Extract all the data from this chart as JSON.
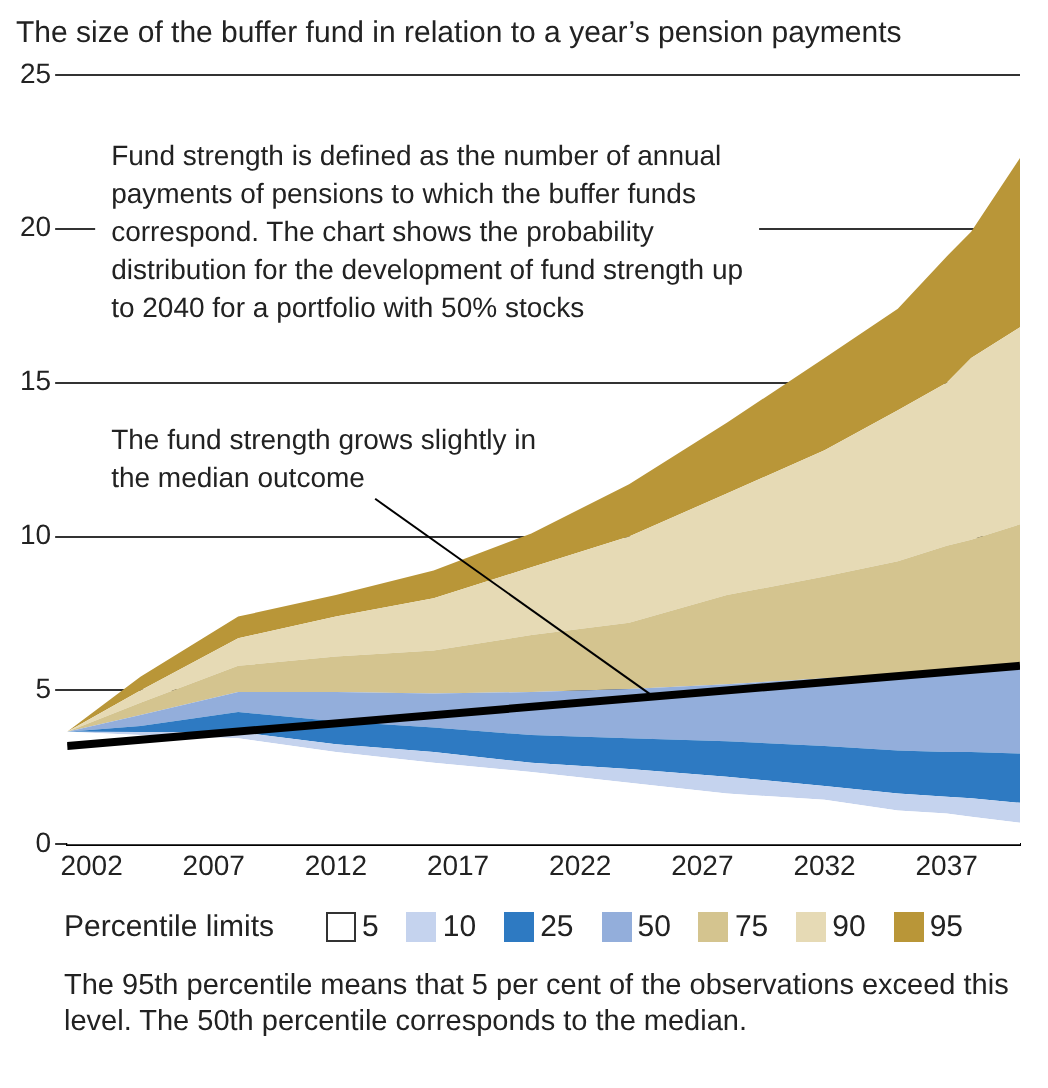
{
  "chart_data": {
    "type": "area",
    "title": "The size of the buffer fund in relation to a year’s pension payments",
    "x": [
      2001,
      2004,
      2008,
      2012,
      2016,
      2020,
      2024,
      2028,
      2032,
      2035,
      2037,
      2038,
      2040
    ],
    "series": [
      {
        "type": "line",
        "color": "#000000",
        "x": [
          2001,
          2040
        ],
        "values": [
          3.2,
          5.8
        ]
      },
      {
        "name": "5",
        "color": "#ffffff",
        "values": [
          3.66,
          3.55,
          3.45,
          3.0,
          2.65,
          2.35,
          2.0,
          1.65,
          1.45,
          1.1,
          1.0,
          0.9,
          0.7
        ]
      },
      {
        "name": "10",
        "color": "#c5d3ee",
        "values": [
          3.66,
          3.65,
          3.65,
          3.25,
          3.0,
          2.65,
          2.45,
          2.2,
          1.9,
          1.65,
          1.55,
          1.5,
          1.35
        ]
      },
      {
        "name": "25",
        "color": "#2e7ac2",
        "values": [
          3.66,
          3.85,
          4.3,
          4.0,
          3.8,
          3.55,
          3.45,
          3.35,
          3.2,
          3.05,
          3.0,
          3.0,
          2.95
        ]
      },
      {
        "name": "50",
        "color": "#93aedb",
        "values": [
          3.66,
          4.2,
          4.95,
          4.95,
          4.9,
          4.95,
          5.05,
          5.2,
          5.4,
          5.55,
          5.65,
          5.7,
          5.8
        ]
      },
      {
        "name": "75",
        "color": "#d4c48f",
        "values": [
          3.66,
          4.6,
          5.8,
          6.1,
          6.3,
          6.8,
          7.2,
          8.1,
          8.7,
          9.2,
          9.7,
          9.9,
          10.4
        ]
      },
      {
        "name": "90",
        "color": "#e6dab5",
        "values": [
          3.66,
          5.0,
          6.7,
          7.4,
          8.0,
          9.0,
          10.0,
          11.4,
          12.8,
          14.1,
          15.0,
          15.8,
          16.8
        ]
      },
      {
        "name": "95",
        "color": "#b99638",
        "values": [
          3.66,
          5.45,
          7.4,
          8.1,
          8.9,
          10.1,
          11.7,
          13.7,
          15.8,
          17.4,
          19.1,
          19.9,
          22.3
        ]
      }
    ],
    "legend_title": "Percentile limits",
    "legend": "bottom",
    "annotations": [
      "Fund strength is defined as the number of annual payments of pensions to which the buffer funds correspond. The chart shows the probability distribution for the development of fund strength up to 2040 for a portfolio with 50% stocks",
      {
        "text": "The fund strength grows slightly in the median outcome",
        "x": 2025,
        "y": 4.8
      },
      "The 95th percentile means that 5 per cent of the observations exceed this level. The 50th percentile corresponds to the median."
    ],
    "xlim": [
      2001,
      2040
    ],
    "xticks": [
      2002,
      2007,
      2012,
      2017,
      2022,
      2027,
      2032,
      2037
    ],
    "ylim": [
      0,
      25
    ],
    "yticks": [
      0,
      5,
      10,
      15,
      20,
      25
    ],
    "grid": "y"
  }
}
